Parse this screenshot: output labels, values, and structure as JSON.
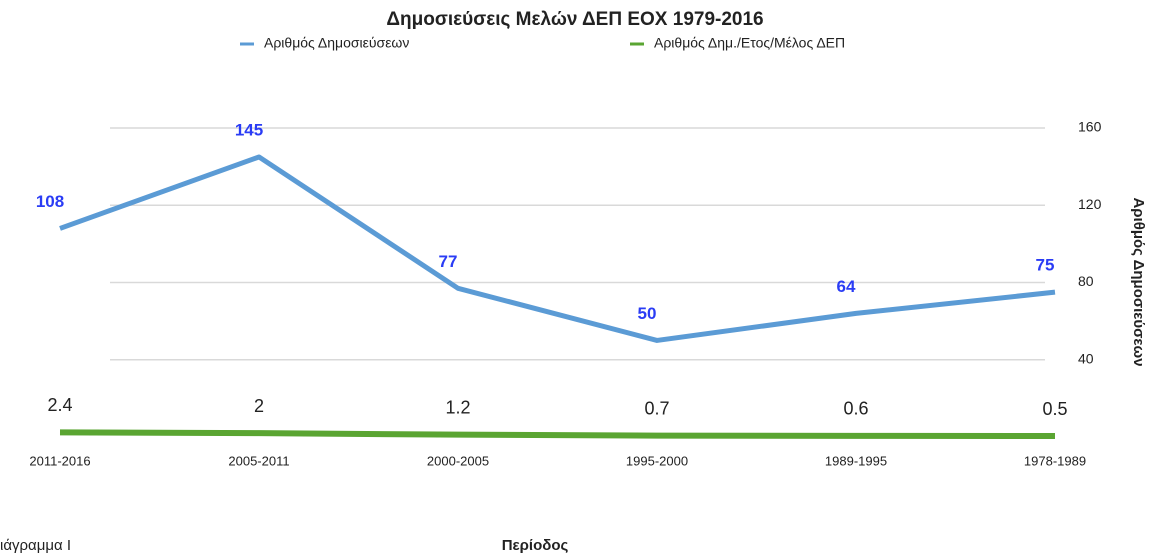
{
  "chart_data": {
    "type": "line",
    "title": "Δημοσιεύσεις Μελών ΔΕΠ ΕΟΧ 1979-2016",
    "x_label": "Περίοδος",
    "y_label": "Αριθμός Δημοσιεύσεων",
    "note": "ιάγραμμα Ι",
    "categories": [
      "2011-2016",
      "2005-2011",
      "2000-2005",
      "1995-2000",
      "1989-1995",
      "1978-1989"
    ],
    "series": [
      {
        "name": "Αριθμός Δημοσιεύσεων",
        "color": "#5b9bd5",
        "label_color": "#2a3cf5",
        "values": [
          108,
          145,
          77,
          50,
          64,
          75
        ]
      },
      {
        "name": "Αριθμός Δημ./Ετος/Μέλος ΔΕΠ",
        "color": "#5aa532",
        "label_color": "#222222",
        "values": [
          2.4,
          2,
          1.2,
          0.7,
          0.6,
          0.5
        ]
      }
    ],
    "ylim": [
      0,
      160
    ],
    "yticks": [
      40,
      80,
      120,
      160
    ],
    "grid": true,
    "legend": "top"
  }
}
